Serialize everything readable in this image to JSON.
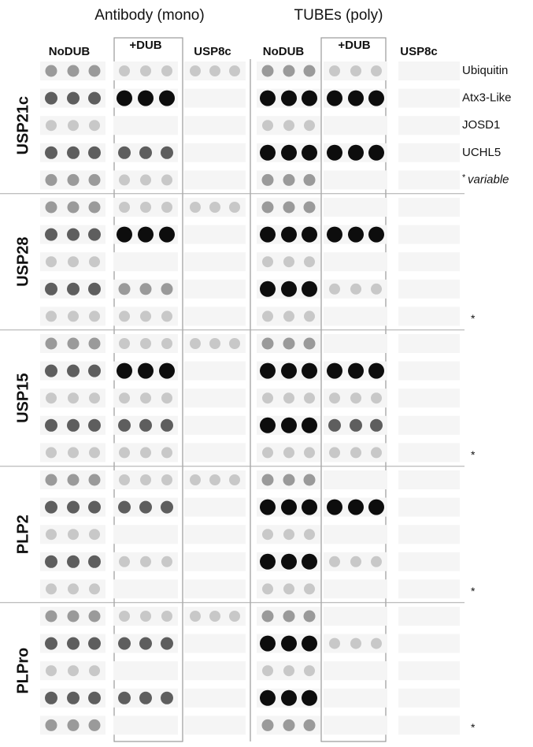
{
  "headers": {
    "antibody": "Antibody (mono)",
    "tubes": "TUBEs (poly)"
  },
  "columns": [
    "NoDUB",
    "+DUB",
    "USP8c",
    "NoDUB",
    "+DUB",
    "USP8c"
  ],
  "groups": [
    "USP21c",
    "USP28",
    "USP15",
    "PLP2",
    "PLPro"
  ],
  "substrates": [
    "Ubiquitin",
    "Atx3-Like",
    "JOSD1",
    "UCHL5"
  ],
  "variable_note": {
    "asterisk": "*",
    "text": "variable"
  },
  "group_asterisks": [
    "*",
    "*",
    "*",
    "*"
  ]
}
